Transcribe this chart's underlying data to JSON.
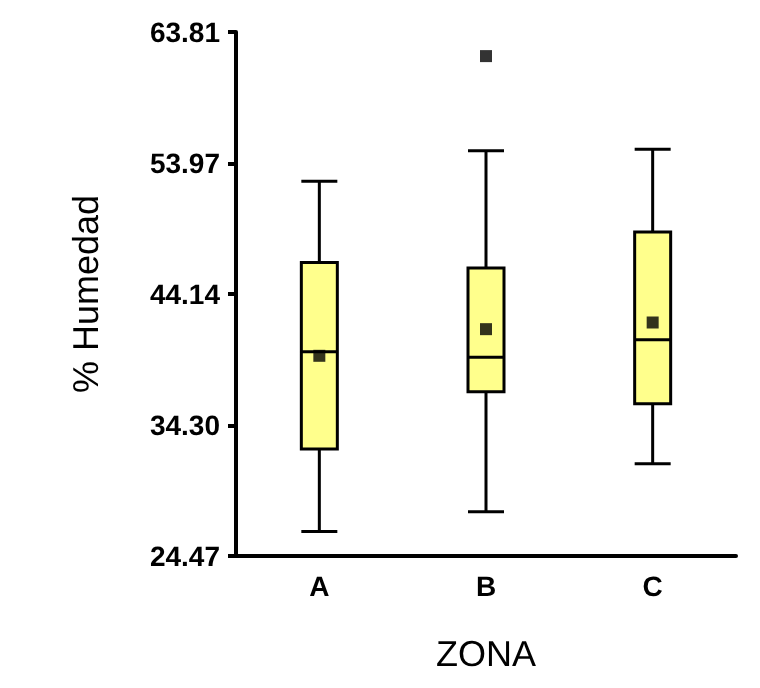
{
  "chart_data": {
    "type": "box",
    "xlabel": "ZONA",
    "ylabel": "% Humedad",
    "categories": [
      "A",
      "B",
      "C"
    ],
    "color": "#ffff8c",
    "marker": "square",
    "grid": false,
    "boxes": [
      {
        "low": 26.3,
        "q1": 32.5,
        "median": 39.8,
        "q3": 46.5,
        "high": 52.6,
        "mean": 39.5
      },
      {
        "low": 27.8,
        "q1": 36.8,
        "median": 39.4,
        "q3": 46.1,
        "high": 54.9,
        "mean": 41.5,
        "outliers": [
          62.0
        ]
      },
      {
        "low": 31.4,
        "q1": 35.9,
        "median": 40.7,
        "q3": 48.8,
        "high": 55.0,
        "mean": 42.0
      }
    ],
    "ylim": [
      24.47,
      63.81
    ],
    "yticks": [
      {
        "value": 24.47,
        "label": "24.47"
      },
      {
        "value": 34.3,
        "label": "34.30"
      },
      {
        "value": 44.14,
        "label": "44.14"
      },
      {
        "value": 53.97,
        "label": "53.97"
      },
      {
        "value": 63.81,
        "label": "63.81"
      }
    ]
  }
}
